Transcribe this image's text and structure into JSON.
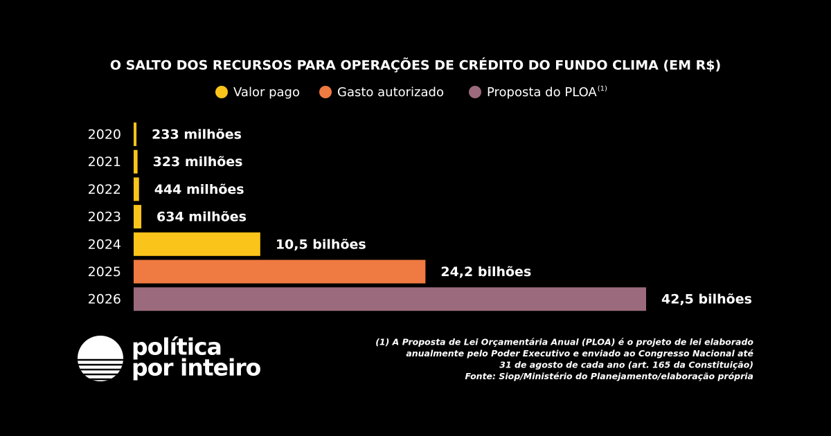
{
  "chart_data": {
    "type": "bar",
    "orientation": "horizontal",
    "title": "O SALTO DOS RECURSOS PARA OPERAÇÕES DE CRÉDITO DO FUNDO CLIMA (EM R$)",
    "categories": [
      "2020",
      "2021",
      "2022",
      "2023",
      "2024",
      "2025",
      "2026"
    ],
    "series": [
      {
        "name": "Valor pago",
        "color": "#fbc41a",
        "values": [
          233,
          323,
          444,
          634,
          10500,
          null,
          null
        ],
        "value_labels": [
          "233 milhões",
          "323 milhões",
          "444 milhões",
          "634 milhões",
          "10,5 bilhões",
          null,
          null
        ]
      },
      {
        "name": "Gasto autorizado",
        "color": "#ef7a42",
        "values": [
          null,
          null,
          null,
          null,
          null,
          24200,
          null
        ],
        "value_labels": [
          null,
          null,
          null,
          null,
          null,
          "24,2 bilhões",
          null
        ]
      },
      {
        "name": "Proposta do PLOA",
        "color": "#9b6a7c",
        "values": [
          null,
          null,
          null,
          null,
          null,
          null,
          42500
        ],
        "value_labels": [
          null,
          null,
          null,
          null,
          null,
          null,
          "42,5 bilhões"
        ]
      }
    ],
    "legend_marker": "(1)",
    "footnote": [
      "(1) A Proposta de Lei Orçamentária Anual (PLOA) é o projeto de lei elaborado",
      "anualmente pelo Poder Executivo e enviado ao Congresso Nacional até",
      "31 de agosto de cada ano (art. 165 da Constituição)",
      "Fonte: Siop/Ministério do Planejamento/elaboração própria"
    ],
    "brand": [
      "política",
      "por inteiro"
    ]
  }
}
